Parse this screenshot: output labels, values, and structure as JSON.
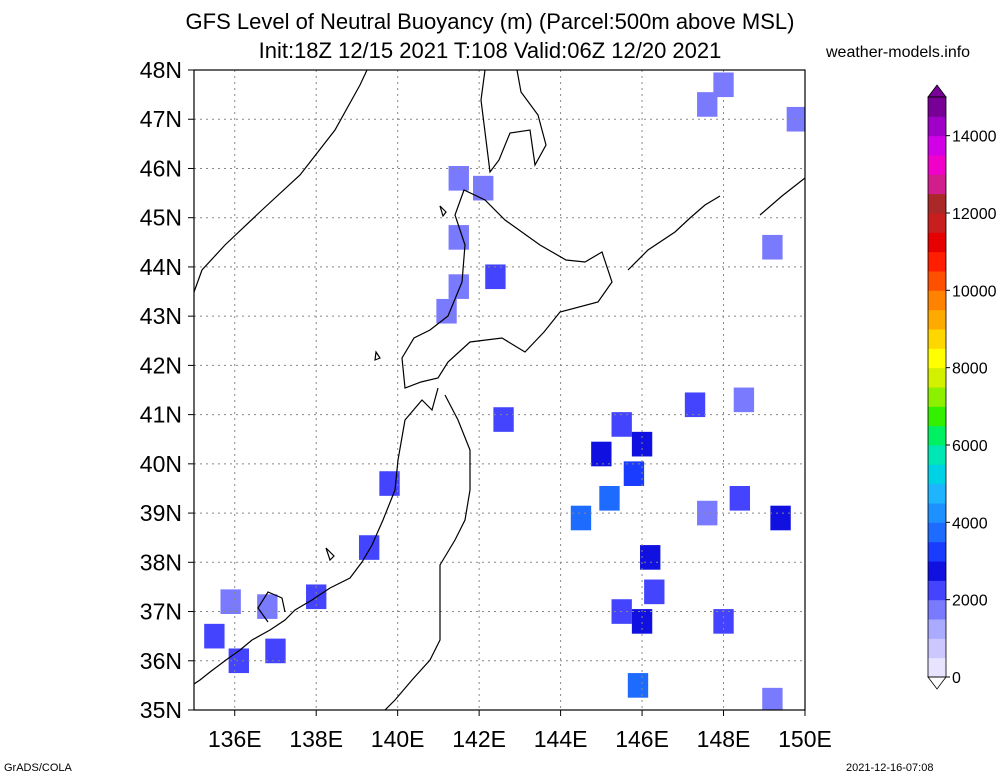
{
  "title_line1": "GFS Level of Neutral Buoyancy (m) (Parcel:500m above MSL)",
  "title_line2": "Init:18Z 12/15 2021 T:108 Valid:06Z 12/20 2021",
  "site": "weather-models.info",
  "footer_left": "GrADS/COLA",
  "footer_right": "2021-12-16-07:08",
  "map": {
    "lon_range": [
      135,
      150
    ],
    "lat_range": [
      35,
      48
    ],
    "lon_ticks": [
      "136E",
      "138E",
      "140E",
      "142E",
      "144E",
      "146E",
      "148E",
      "150E"
    ],
    "lat_ticks": [
      "35N",
      "36N",
      "37N",
      "38N",
      "39N",
      "40N",
      "41N",
      "42N",
      "43N",
      "44N",
      "45N",
      "46N",
      "47N",
      "48N"
    ],
    "grid": true,
    "background": "#ffffff"
  },
  "colorbar": {
    "labels": [
      "0",
      "2000",
      "4000",
      "6000",
      "8000",
      "10000",
      "12000",
      "14000"
    ],
    "range": [
      0,
      15000
    ],
    "colors": [
      "#e8e4ff",
      "#ccc8ff",
      "#aaaaff",
      "#7a7aff",
      "#4444ff",
      "#1010e0",
      "#1a3cff",
      "#1e6cff",
      "#1e90ff",
      "#1eb4ff",
      "#00d2e6",
      "#00e6b4",
      "#00f064",
      "#32f000",
      "#8cf000",
      "#d2f000",
      "#ffff00",
      "#ffd700",
      "#ffaa00",
      "#ff8200",
      "#ff5000",
      "#ff1e00",
      "#e60000",
      "#c81e1e",
      "#aa2828",
      "#d21e8c",
      "#f000c8",
      "#d200e6",
      "#a000c8",
      "#780096"
    ]
  },
  "data_cells": [
    {
      "lon": 148.0,
      "lat": 47.7,
      "value": 1800
    },
    {
      "lon": 147.6,
      "lat": 47.3,
      "value": 1800
    },
    {
      "lon": 149.8,
      "lat": 47.0,
      "value": 1700
    },
    {
      "lon": 141.5,
      "lat": 45.8,
      "value": 1900
    },
    {
      "lon": 142.1,
      "lat": 45.6,
      "value": 1900
    },
    {
      "lon": 141.5,
      "lat": 44.6,
      "value": 1900
    },
    {
      "lon": 149.2,
      "lat": 44.4,
      "value": 1500
    },
    {
      "lon": 142.4,
      "lat": 43.8,
      "value": 2000
    },
    {
      "lon": 141.5,
      "lat": 43.6,
      "value": 1900
    },
    {
      "lon": 141.2,
      "lat": 43.1,
      "value": 1800
    },
    {
      "lon": 142.6,
      "lat": 40.9,
      "value": 2000
    },
    {
      "lon": 145.5,
      "lat": 40.8,
      "value": 2400
    },
    {
      "lon": 146.0,
      "lat": 40.4,
      "value": 2600
    },
    {
      "lon": 145.0,
      "lat": 40.2,
      "value": 2500
    },
    {
      "lon": 147.3,
      "lat": 41.2,
      "value": 2000
    },
    {
      "lon": 148.5,
      "lat": 41.3,
      "value": 1900
    },
    {
      "lon": 145.8,
      "lat": 39.8,
      "value": 3200
    },
    {
      "lon": 145.2,
      "lat": 39.3,
      "value": 3600
    },
    {
      "lon": 144.5,
      "lat": 38.9,
      "value": 3600
    },
    {
      "lon": 148.4,
      "lat": 39.3,
      "value": 2400
    },
    {
      "lon": 147.6,
      "lat": 39.0,
      "value": 1800
    },
    {
      "lon": 149.4,
      "lat": 38.9,
      "value": 2600
    },
    {
      "lon": 146.2,
      "lat": 38.1,
      "value": 2600
    },
    {
      "lon": 146.3,
      "lat": 37.4,
      "value": 2000
    },
    {
      "lon": 145.5,
      "lat": 37.0,
      "value": 2200
    },
    {
      "lon": 146.0,
      "lat": 36.8,
      "value": 2800
    },
    {
      "lon": 148.0,
      "lat": 36.8,
      "value": 2200
    },
    {
      "lon": 139.3,
      "lat": 38.3,
      "value": 2000
    },
    {
      "lon": 139.8,
      "lat": 39.6,
      "value": 2200
    },
    {
      "lon": 135.5,
      "lat": 36.5,
      "value": 2300
    },
    {
      "lon": 136.1,
      "lat": 36.0,
      "value": 2200
    },
    {
      "lon": 136.8,
      "lat": 37.1,
      "value": 1800
    },
    {
      "lon": 137.0,
      "lat": 36.2,
      "value": 2300
    },
    {
      "lon": 138.0,
      "lat": 37.3,
      "value": 2200
    },
    {
      "lon": 135.9,
      "lat": 37.2,
      "value": 1900
    },
    {
      "lon": 145.9,
      "lat": 35.5,
      "value": 3800
    },
    {
      "lon": 149.2,
      "lat": 35.2,
      "value": 1500
    }
  ]
}
